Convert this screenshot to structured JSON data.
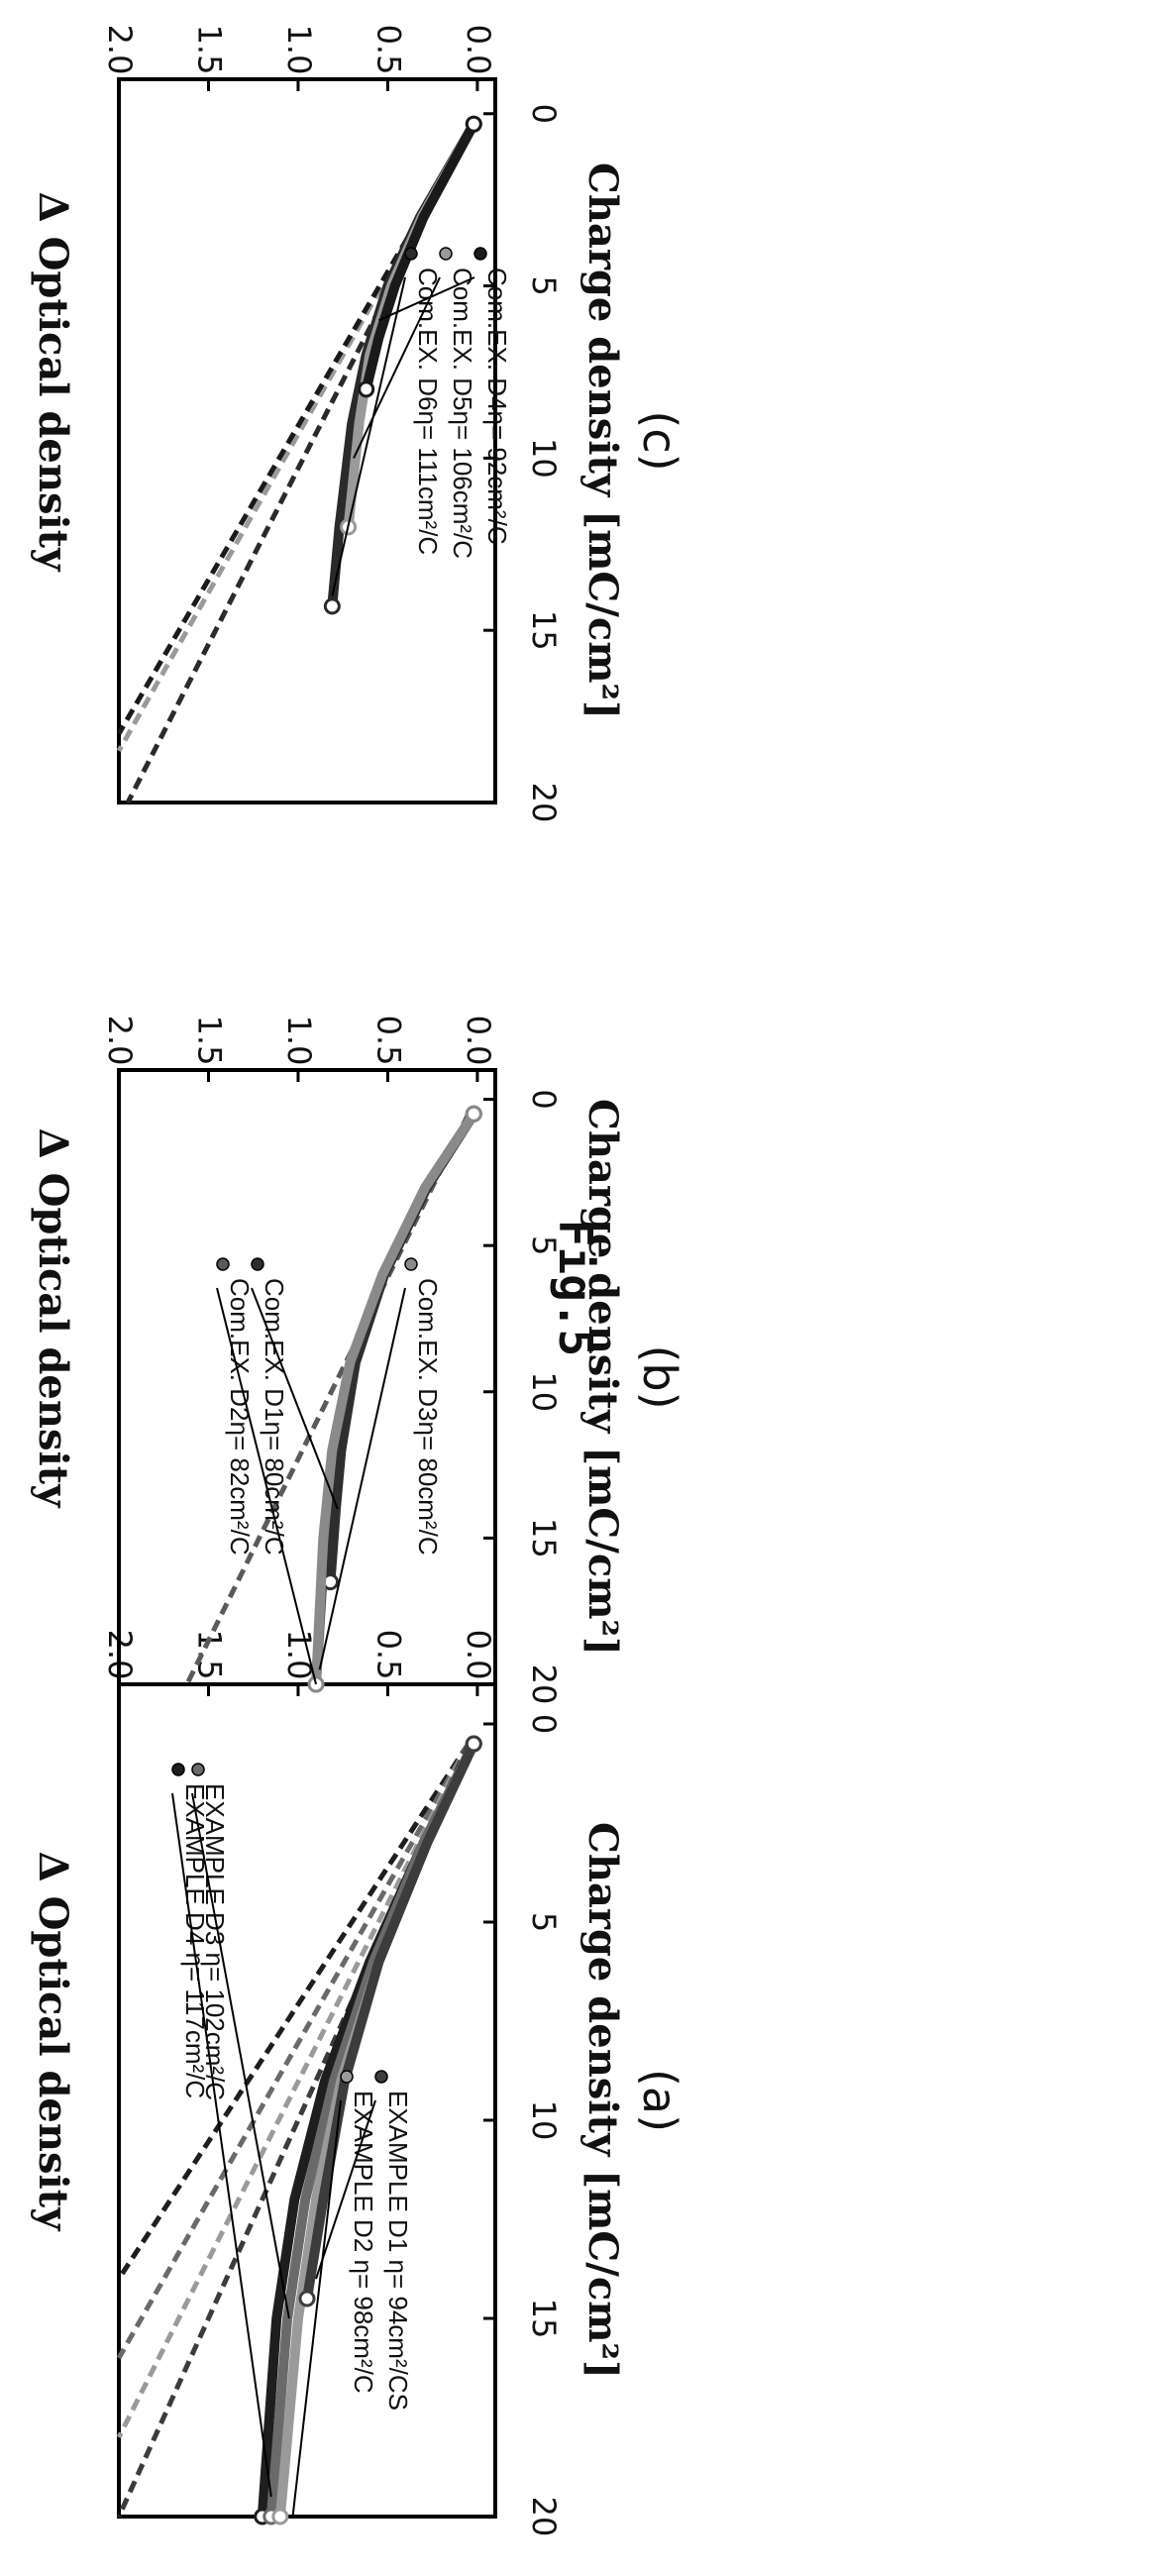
{
  "figure_title": "Fig.5",
  "chart_data": [
    {
      "panel": "(a)",
      "type": "line",
      "xlabel": "Charge density [mC/cm²]",
      "ylabel": "Δ Optical density",
      "xlim": [
        -1,
        20
      ],
      "ylim": [
        -0.1,
        2.0
      ],
      "xticks": [
        "0",
        "5",
        "10",
        "15",
        "20"
      ],
      "yticks": [
        "0.0",
        "0.5",
        "1.0",
        "1.5",
        "2.0"
      ],
      "grid": false,
      "series": [
        {
          "name": "EXAMPLE D4",
          "color": "#1e1e1e",
          "x": [
            0.5,
            3,
            6,
            9,
            12,
            15,
            20
          ],
          "y": [
            0.02,
            0.3,
            0.6,
            0.85,
            1.02,
            1.12,
            1.2
          ]
        },
        {
          "name": "EXAMPLE D3",
          "color": "#6a6a6a",
          "x": [
            0.5,
            3,
            6,
            9,
            12,
            15,
            20
          ],
          "y": [
            0.02,
            0.3,
            0.58,
            0.8,
            0.96,
            1.06,
            1.15
          ]
        },
        {
          "name": "EXAMPLE D2",
          "color": "#9a9a9a",
          "x": [
            0.5,
            3,
            6,
            9,
            12,
            15,
            20
          ],
          "y": [
            0.02,
            0.28,
            0.55,
            0.76,
            0.9,
            1.0,
            1.1
          ]
        },
        {
          "name": "EXAMPLE D1",
          "color": "#3c3c3c",
          "x": [
            0.5,
            3,
            6,
            9,
            12,
            14.5
          ],
          "y": [
            0.02,
            0.28,
            0.55,
            0.74,
            0.86,
            0.95
          ]
        }
      ],
      "fit_lines": [
        {
          "color": "#1e1e1e",
          "x": [
            0.5,
            14
          ],
          "y": [
            0.05,
            2.0
          ]
        },
        {
          "color": "#6a6a6a",
          "x": [
            0.5,
            16
          ],
          "y": [
            0.05,
            2.0
          ]
        },
        {
          "color": "#9a9a9a",
          "x": [
            0.5,
            18
          ],
          "y": [
            0.05,
            2.0
          ]
        },
        {
          "color": "#3c3c3c",
          "x": [
            0.5,
            20
          ],
          "y": [
            0.05,
            2.0
          ]
        }
      ],
      "annotations": [
        {
          "text": "EXAMPLE D4 η= 117cm²/C",
          "marker": "#1e1e1e"
        },
        {
          "text": "EXAMPLE D3 η= 102cm²/C",
          "marker": "#6a6a6a"
        },
        {
          "text": "EXAMPLE D2 η= 98cm²/C",
          "marker": "#9a9a9a"
        },
        {
          "text": "EXAMPLE D1 η= 94cm²/CS",
          "marker": "#3c3c3c"
        }
      ]
    },
    {
      "panel": "(b)",
      "type": "line",
      "xlabel": "Charge density [mC/cm²]",
      "ylabel": "Δ Optical density",
      "xlim": [
        -1,
        20
      ],
      "ylim": [
        -0.1,
        2.0
      ],
      "xticks": [
        "0",
        "5",
        "10",
        "15",
        "20"
      ],
      "yticks": [
        "0.0",
        "0.5",
        "1.0",
        "1.5",
        "2.0"
      ],
      "grid": false,
      "series": [
        {
          "name": "Com.EX. D2",
          "color": "#5a5a5a",
          "x": [
            0.5,
            3,
            6,
            9,
            12,
            15,
            20
          ],
          "y": [
            0.02,
            0.28,
            0.52,
            0.7,
            0.8,
            0.85,
            0.9
          ]
        },
        {
          "name": "Com.EX. D1",
          "color": "#2e2e2e",
          "x": [
            0.5,
            3,
            6,
            9,
            12,
            14,
            16.5
          ],
          "y": [
            0.02,
            0.28,
            0.52,
            0.68,
            0.76,
            0.79,
            0.82
          ]
        },
        {
          "name": "Com.EX. D3",
          "color": "#8a8a8a",
          "x": [
            0.5,
            3,
            6,
            9,
            12,
            15,
            20
          ],
          "y": [
            0.02,
            0.29,
            0.53,
            0.71,
            0.81,
            0.86,
            0.9
          ]
        }
      ],
      "fit_lines": [
        {
          "color": "#5a5a5a",
          "x": [
            0.5,
            20
          ],
          "y": [
            0.05,
            1.62
          ]
        }
      ],
      "annotations": [
        {
          "text": "Com.EX.  D2η= 82cm²/C",
          "marker": "#5a5a5a"
        },
        {
          "text": "Com.EX.  D1η= 80cm²/C",
          "marker": "#2e2e2e"
        },
        {
          "text": "Com.EX.  D3η= 80cm²/C",
          "marker": "#8a8a8a"
        }
      ]
    },
    {
      "panel": "(c)",
      "type": "line",
      "xlabel": "Charge density [mC/cm²]",
      "ylabel": "Δ Optical density",
      "xlim": [
        -1,
        20
      ],
      "ylim": [
        -0.1,
        2.0
      ],
      "xticks": [
        "0",
        "5",
        "10",
        "15",
        "20"
      ],
      "yticks": [
        "0.0",
        "0.5",
        "1.0",
        "1.5",
        "2.0"
      ],
      "grid": false,
      "series": [
        {
          "name": "Com.EX. D6",
          "color": "#2a2a2a",
          "x": [
            0.3,
            3,
            5,
            7,
            9,
            12,
            14.3
          ],
          "y": [
            0.02,
            0.32,
            0.5,
            0.62,
            0.7,
            0.77,
            0.81
          ]
        },
        {
          "name": "Com.EX. D5",
          "color": "#9a9a9a",
          "x": [
            0.3,
            3,
            5,
            7,
            9,
            12
          ],
          "y": [
            0.02,
            0.31,
            0.48,
            0.6,
            0.66,
            0.72
          ]
        },
        {
          "name": "Com.EX. D4",
          "color": "#1a1a1a",
          "x": [
            0.3,
            3,
            5,
            6.5,
            8
          ],
          "y": [
            0.02,
            0.3,
            0.46,
            0.55,
            0.62
          ]
        }
      ],
      "fit_lines": [
        {
          "color": "#2a2a2a",
          "x": [
            0.3,
            20
          ],
          "y": [
            0.02,
            1.95
          ]
        },
        {
          "color": "#9a9a9a",
          "x": [
            0.3,
            18.5
          ],
          "y": [
            0.02,
            2.0
          ]
        },
        {
          "color": "#1a1a1a",
          "x": [
            0.3,
            18
          ],
          "y": [
            0.02,
            2.0
          ]
        }
      ],
      "annotations": [
        {
          "text": "Com.EX.  D6η= 111cm²/C",
          "marker": "#2a2a2a"
        },
        {
          "text": "Com.EX.  D5η= 106cm²/C",
          "marker": "#9a9a9a"
        },
        {
          "text": "Com.EX.  D4η= 92cm²/C",
          "marker": "#1a1a1a"
        }
      ]
    }
  ]
}
